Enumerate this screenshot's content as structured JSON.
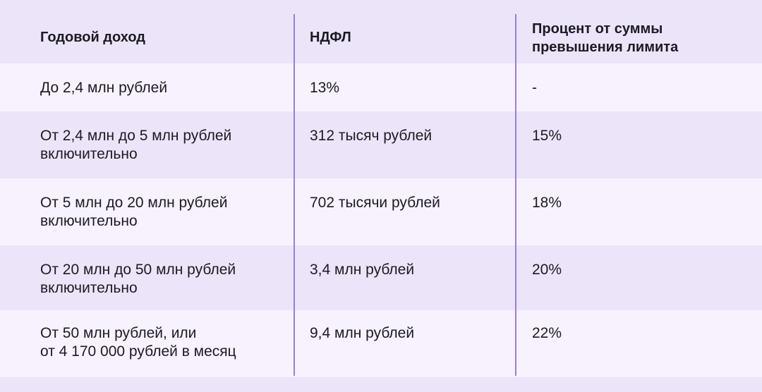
{
  "header": {
    "col1": "Годовой доход",
    "col2": "НДФЛ",
    "col3": "Процент от суммы\nпревышения лимита"
  },
  "rows": [
    {
      "income": "До 2,4 млн рублей",
      "tax": "13%",
      "percent": "-"
    },
    {
      "income": "От 2,4 млн до 5 млн рублей\nвключительно",
      "tax": "312 тысяч рублей",
      "percent": "15%"
    },
    {
      "income": "От 5 млн до 20 млн рублей\nвключительно",
      "tax": "702 тысячи рублей",
      "percent": "18%"
    },
    {
      "income": "От 20 млн до 50 млн рублей\nвключительно",
      "tax": "3,4 млн рублей",
      "percent": "20%"
    },
    {
      "income": "От 50 млн рублей, или\nот 4 170 000 рублей в месяц",
      "tax": "9,4 млн рублей",
      "percent": "22%"
    }
  ]
}
